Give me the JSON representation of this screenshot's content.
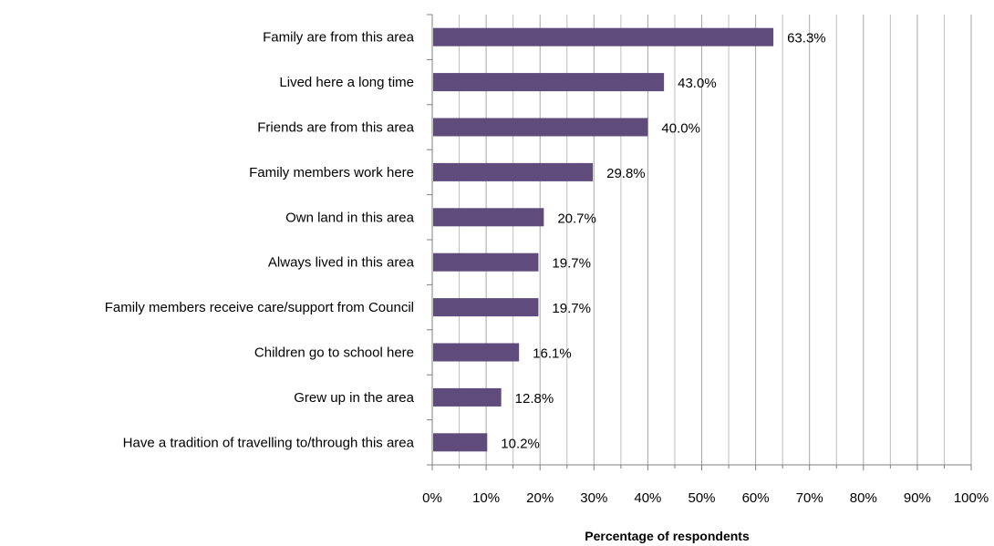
{
  "chart_data": {
    "type": "bar",
    "orientation": "horizontal",
    "categories": [
      "Family are from this area",
      "Lived here a long time",
      "Friends are from this area",
      "Family members work here",
      "Own land in this area",
      "Always lived in this area",
      "Family members receive care/support from Council",
      "Children go to school here",
      "Grew up in the area",
      "Have a tradition of travelling to/through this area"
    ],
    "values": [
      63.3,
      43.0,
      40.0,
      29.8,
      20.7,
      19.7,
      19.7,
      16.1,
      12.8,
      10.2
    ],
    "data_labels": [
      "63.3%",
      "43.0%",
      "40.0%",
      "29.8%",
      "20.7%",
      "19.7%",
      "19.7%",
      "16.1%",
      "12.8%",
      "10.2%"
    ],
    "xlabel": "Percentage of respondents",
    "ylabel": "",
    "title": "",
    "xlim": [
      0,
      100
    ],
    "xticks": [
      0,
      10,
      20,
      30,
      40,
      50,
      60,
      70,
      80,
      90,
      100
    ],
    "xtick_labels": [
      "0%",
      "10%",
      "20%",
      "30%",
      "40%",
      "50%",
      "60%",
      "70%",
      "80%",
      "90%",
      "100%"
    ],
    "gridlines": "vertical major and minor",
    "legend": "none",
    "bar_color": "#5f4b7c",
    "grid_color": "#bfbfbf",
    "axis_color": "#808080"
  }
}
